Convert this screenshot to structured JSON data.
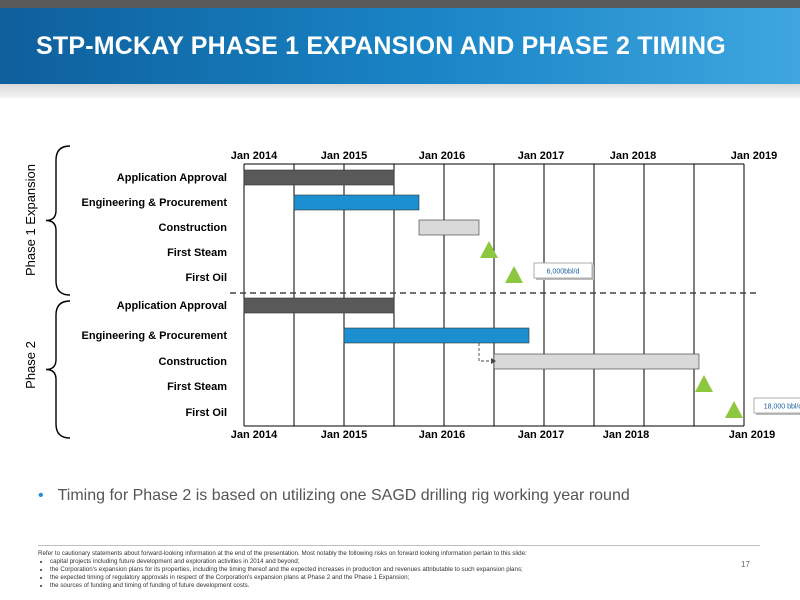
{
  "title": "STP-MCKAY PHASE 1 EXPANSION AND PHASE 2 TIMING",
  "chart_data": {
    "type": "gantt",
    "timeline_labels": [
      "Jan 2014",
      "Jan 2015",
      "Jan 2016",
      "Jan 2017",
      "Jan 2018",
      "Jan 2019"
    ],
    "phases": [
      {
        "name": "Phase 1 Expansion",
        "rows": [
          {
            "label": "Application Approval",
            "kind": "bar",
            "start": 2014.0,
            "end": 2015.5,
            "color": "#595959"
          },
          {
            "label": "Engineering & Procurement",
            "kind": "bar",
            "start": 2014.5,
            "end": 2015.75,
            "color": "#1b8fcf"
          },
          {
            "label": "Construction",
            "kind": "bar",
            "start": 2015.75,
            "end": 2016.35,
            "color": "#d9d9d9"
          },
          {
            "label": "First Steam",
            "kind": "milestone",
            "at": 2016.45,
            "color": "#8dc63f"
          },
          {
            "label": "First Oil",
            "kind": "milestone",
            "at": 2016.7,
            "color": "#8dc63f",
            "callout": "6,000bbl/d"
          }
        ]
      },
      {
        "name": "Phase 2",
        "rows": [
          {
            "label": "Application Approval",
            "kind": "bar",
            "start": 2014.0,
            "end": 2015.5,
            "color": "#595959"
          },
          {
            "label": "Engineering & Procurement",
            "kind": "bar",
            "start": 2015.0,
            "end": 2016.85,
            "color": "#1b8fcf"
          },
          {
            "label": "Construction",
            "kind": "bar",
            "start": 2016.5,
            "end": 2018.55,
            "color": "#d9d9d9"
          },
          {
            "label": "First Steam",
            "kind": "milestone",
            "at": 2018.6,
            "color": "#8dc63f"
          },
          {
            "label": "First Oil",
            "kind": "milestone",
            "at": 2018.9,
            "color": "#8dc63f",
            "callout": "18,000 bbl/d"
          }
        ]
      }
    ]
  },
  "note": "Timing for Phase 2 is based on utilizing one SAGD drilling rig working year round",
  "disclaimer": {
    "lead": "Refer to cautionary statements about forward-looking information at the end of the presentation.  Most notably the following risks on forward looking information pertain to this slide:",
    "items": [
      "capital projects including future development and exploration activities in 2014 and beyond;",
      "the Corporation's expansion plans for its properties, including the timing thereof and the expected increases in production and revenues attributable to such expansion plans;",
      "the expected timing of regulatory approvals in respect of the Corporation's expansion plans at Phase 2 and the Phase 1 Expansion;",
      "the sources of funding and timing of funding of future development costs."
    ]
  },
  "page_number": "17"
}
